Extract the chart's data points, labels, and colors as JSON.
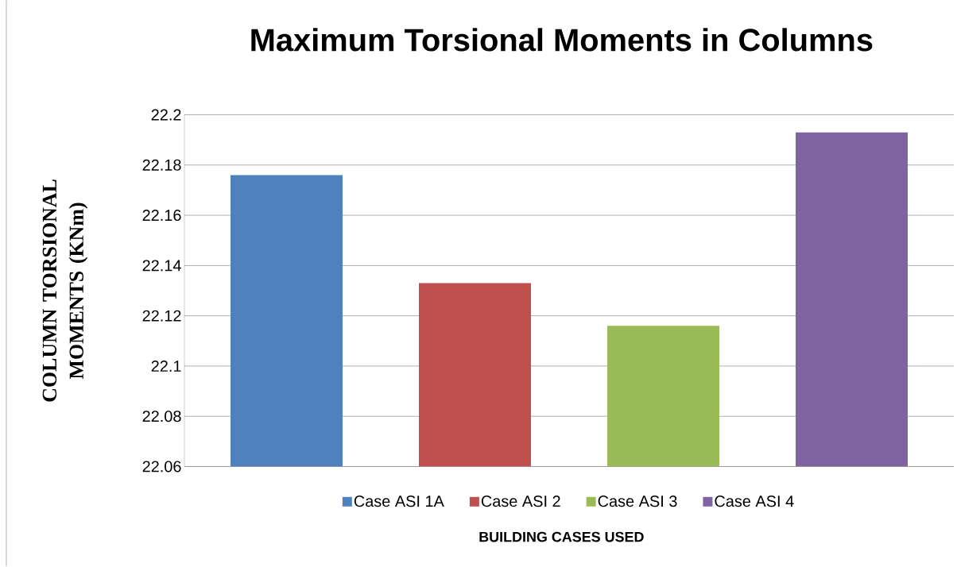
{
  "chart_data": {
    "type": "bar",
    "title": "Maximum Torsional Moments in Columns",
    "xlabel": "BUILDING CASES USED",
    "ylabel": "COLUMN TORSIONAL MOMENTS (KNm)",
    "categories": [
      null
    ],
    "series": [
      {
        "name": "Case ASI 1A",
        "color": "#4f81bd",
        "values": [
          22.176
        ]
      },
      {
        "name": "Case ASI 2",
        "color": "#c0504d",
        "values": [
          22.133
        ]
      },
      {
        "name": "Case ASI 3",
        "color": "#9bbb59",
        "values": [
          22.116
        ]
      },
      {
        "name": "Case ASI 4",
        "color": "#8064a2",
        "values": [
          22.193
        ]
      }
    ],
    "ylim": [
      22.06,
      22.2
    ],
    "yticks": [
      22.06,
      22.08,
      22.1,
      22.12,
      22.14,
      22.16,
      22.18,
      22.2
    ],
    "grid": "y",
    "legend": "bottom"
  }
}
